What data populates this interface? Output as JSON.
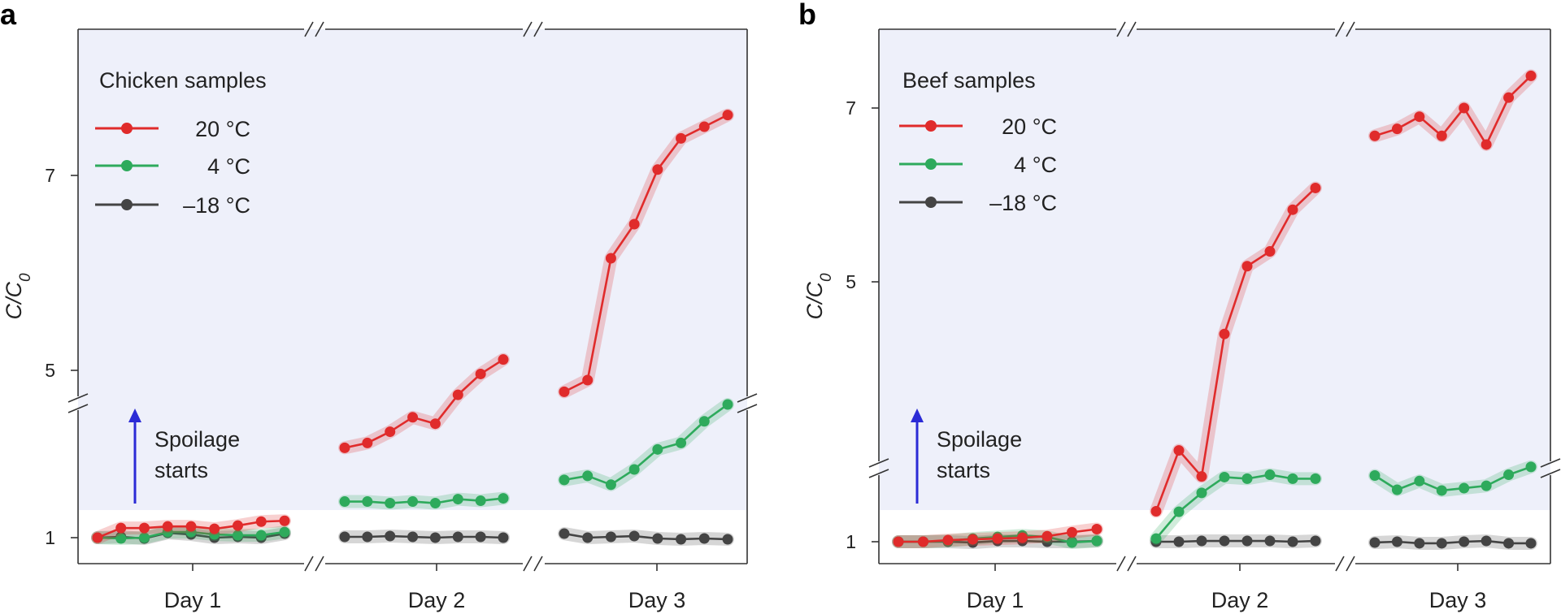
{
  "chart_data": [
    {
      "panel_label": "a",
      "type": "line",
      "legend_title": "Chicken samples",
      "ylabel": "C/C0",
      "ylabel_base": "C/C",
      "ylabel_sub": "0",
      "x_groups": [
        "Day 1",
        "Day 2",
        "Day 3"
      ],
      "y_ticks": [
        "1",
        "5",
        "7"
      ],
      "y_axis_break": true,
      "annotation": [
        "Spoilage",
        "starts"
      ],
      "annotation_arrow_color": "#2b2bd6",
      "spoilage_region_color": "#eef0fa",
      "legend_placement": "top-left",
      "series": [
        {
          "name": "20 °C",
          "color": "#e02b2b",
          "values": [
            [
              1.0,
              1.12,
              1.12,
              1.14,
              1.14,
              1.11,
              1.15,
              1.2,
              1.21
            ],
            [
              2.12,
              2.18,
              2.32,
              2.5,
              2.42,
              2.78,
              3.04,
              3.22
            ],
            [
              4.78,
              4.9,
              6.15,
              6.5,
              7.06,
              7.38,
              7.5,
              7.62
            ]
          ]
        },
        {
          "name": "4 °C",
          "color": "#2eaa5c",
          "values": [
            [
              1.0,
              0.99,
              1.0,
              1.07,
              1.07,
              1.04,
              1.03,
              1.03,
              1.07
            ],
            [
              1.45,
              1.45,
              1.43,
              1.45,
              1.43,
              1.48,
              1.46,
              1.49
            ],
            [
              1.72,
              1.77,
              1.66,
              1.85,
              2.1,
              2.18,
              2.45,
              2.66
            ]
          ]
        },
        {
          "name": "–18 °C",
          "color": "#444444",
          "values": [
            [
              1.0,
              1.01,
              0.99,
              1.06,
              1.04,
              1.0,
              1.01,
              1.0,
              1.05
            ],
            [
              1.01,
              1.01,
              1.02,
              1.01,
              1.0,
              1.01,
              1.01,
              1.0
            ],
            [
              1.05,
              1.0,
              1.01,
              1.02,
              0.99,
              0.98,
              0.99,
              0.98
            ]
          ]
        }
      ]
    },
    {
      "panel_label": "b",
      "type": "line",
      "legend_title": "Beef samples",
      "ylabel": "C/C0",
      "ylabel_base": "C/C",
      "ylabel_sub": "0",
      "x_groups": [
        "Day 1",
        "Day 2",
        "Day 3"
      ],
      "y_ticks": [
        "1",
        "5",
        "7"
      ],
      "y_axis_break": true,
      "annotation": [
        "Spoilage",
        "starts"
      ],
      "annotation_arrow_color": "#2b2bd6",
      "spoilage_region_color": "#eef0fa",
      "legend_placement": "top-left",
      "series": [
        {
          "name": "20 °C",
          "color": "#e02b2b",
          "values": [
            [
              1.0,
              1.0,
              1.02,
              1.03,
              1.04,
              1.05,
              1.07,
              1.12,
              1.16
            ],
            [
              2.36,
              3.06,
              2.76,
              4.4,
              5.18,
              5.35,
              5.83,
              6.08
            ],
            [
              6.68,
              6.76,
              6.9,
              6.68,
              7.0,
              6.58,
              7.12,
              7.37
            ]
          ]
        },
        {
          "name": "4 °C",
          "color": "#2eaa5c",
          "values": [
            [
              1.0,
              1.0,
              1.01,
              1.04,
              1.06,
              1.08,
              1.06,
              0.99,
              1.01
            ],
            [
              1.04,
              1.38,
              1.62,
              1.82,
              1.8,
              1.85,
              1.8,
              1.8
            ],
            [
              1.84,
              1.66,
              1.77,
              1.65,
              1.68,
              1.71,
              1.85,
              1.95
            ]
          ]
        },
        {
          "name": "–18 °C",
          "color": "#444444",
          "values": [
            [
              1.0,
              1.0,
              1.0,
              0.99,
              1.01,
              1.01,
              1.0,
              1.0,
              1.01
            ],
            [
              1.0,
              1.0,
              1.01,
              1.01,
              1.01,
              1.01,
              1.0,
              1.01
            ],
            [
              0.99,
              1.0,
              0.98,
              0.98,
              1.0,
              1.01,
              0.98,
              0.98
            ]
          ]
        }
      ]
    }
  ]
}
